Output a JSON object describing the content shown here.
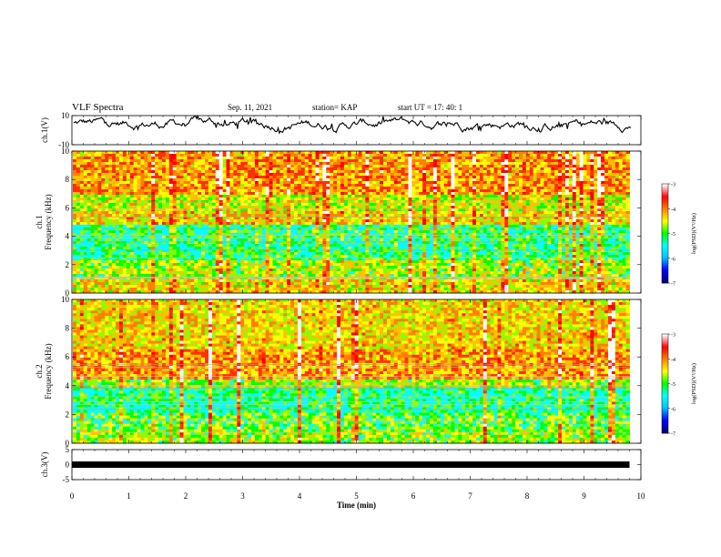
{
  "header": {
    "title": "VLF Spectra",
    "date": "Sep. 11, 2021",
    "station": "station= KAP",
    "start": "start UT = 17: 40: 1"
  },
  "chart_data": [
    {
      "type": "line",
      "ylabel": "ch.1(V)",
      "ylim": [
        -10,
        10
      ],
      "yticks": [
        "10",
        "-10"
      ],
      "xlim": [
        0,
        10
      ],
      "color": "#000000",
      "mean": 4.5,
      "amplitude": 5
    },
    {
      "type": "heatmap",
      "ylabel_top": "ch.1",
      "ylabel": "Frequency (kHz)",
      "ylim": [
        0,
        10
      ],
      "yticks": [
        "0",
        "2",
        "4",
        "6",
        "8",
        "10"
      ],
      "xlim": [
        0,
        9.8
      ],
      "colorbar": {
        "label": "log(PSD)(V²/Hz)",
        "range": [
          -7,
          -3
        ],
        "ticks": [
          "-3",
          "-4",
          "-5",
          "-6",
          "-7"
        ],
        "colors": [
          "#000080",
          "#0000ff",
          "#00bfff",
          "#00ffff",
          "#00ff00",
          "#ffff00",
          "#ff8000",
          "#ff0000",
          "#ffffff"
        ]
      }
    },
    {
      "type": "heatmap",
      "ylabel_top": "ch.2",
      "ylabel": "Frequency (kHz)",
      "ylim": [
        0,
        10
      ],
      "yticks": [
        "0",
        "2",
        "4",
        "6",
        "8",
        "10"
      ],
      "xlim": [
        0,
        9.8
      ],
      "colorbar": {
        "label": "log(PSD)(V²/Hz)",
        "range": [
          -7,
          -3
        ],
        "ticks": [
          "-3",
          "-4",
          "-5",
          "-6",
          "-7"
        ],
        "colors": [
          "#000080",
          "#0000ff",
          "#00bfff",
          "#00ffff",
          "#00ff00",
          "#ffff00",
          "#ff8000",
          "#ff0000",
          "#ffffff"
        ]
      }
    },
    {
      "type": "line",
      "ylabel": "ch.3(V)",
      "ylim": [
        -5,
        5
      ],
      "yticks": [
        "5",
        "0",
        "-5"
      ],
      "xlim": [
        0,
        10
      ],
      "xticks": [
        "0",
        "1",
        "2",
        "3",
        "4",
        "5",
        "6",
        "7",
        "8",
        "9",
        "10"
      ],
      "xlabel": "Time (min)",
      "color": "#000000",
      "mean": 0
    }
  ]
}
